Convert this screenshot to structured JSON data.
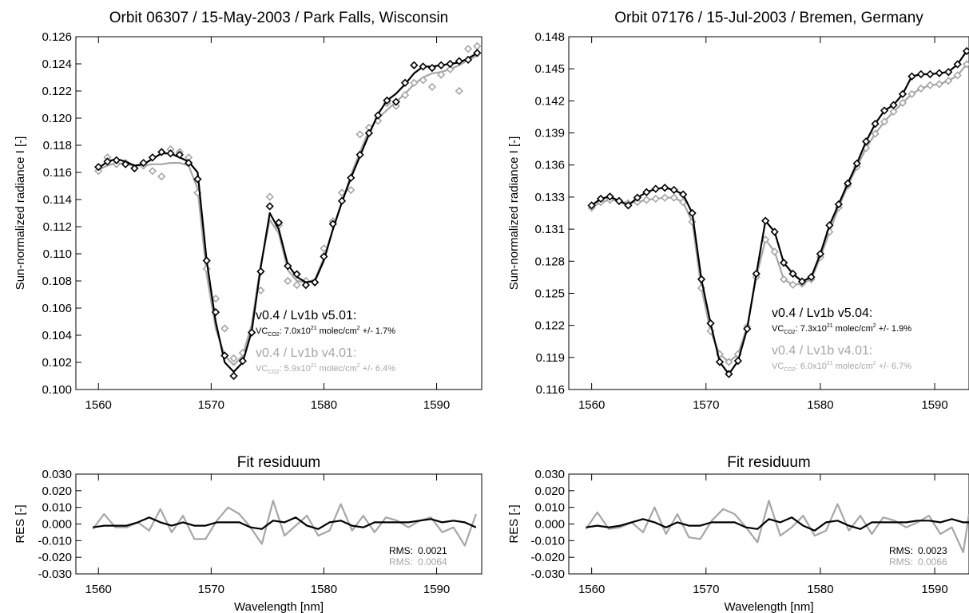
{
  "chart_data": [
    {
      "type": "line",
      "title": "Orbit 06307 / 15-May-2003 / Park Falls, Wisconsin",
      "xlabel": "",
      "ylabel": "Sun-normalized radiance I [-]",
      "xlim": [
        1558,
        1594
      ],
      "ylim": [
        0.1,
        0.126
      ],
      "x_ticks": [
        "1560",
        "1570",
        "1580",
        "1590"
      ],
      "y_ticks": [
        "0.100",
        "0.102",
        "0.104",
        "0.106",
        "0.108",
        "0.110",
        "0.112",
        "0.114",
        "0.116",
        "0.118",
        "0.120",
        "0.122",
        "0.124",
        "0.126"
      ],
      "grid": false,
      "annotations": [
        {
          "title": "v0.4 / Lv1b v5.01:",
          "vc_prefix": "VC",
          "vc_sub": "CO2",
          "vc_text": ": 7.0x10",
          "vc_exp": "21",
          "vc_unit": " molec/cm",
          "vc_unit_exp": "2",
          "vc_err": " +/- 1.7%",
          "color": "#000000"
        },
        {
          "title": "v0.4 / Lv1b v4.01:",
          "vc_prefix": "VC",
          "vc_sub": "CO2",
          "vc_text": ": 5.9x10",
          "vc_exp": "21",
          "vc_unit": " molec/cm",
          "vc_unit_exp": "2",
          "vc_err": " +/- 6.4%",
          "color": "#a6a6a6"
        }
      ],
      "x": [
        1560.0,
        1560.8,
        1561.6,
        1562.4,
        1563.2,
        1564.0,
        1564.8,
        1565.6,
        1566.4,
        1567.2,
        1568.0,
        1568.8,
        1569.6,
        1570.4,
        1571.2,
        1572.0,
        1572.8,
        1573.6,
        1574.4,
        1575.2,
        1576.0,
        1576.8,
        1577.6,
        1578.4,
        1579.2,
        1580.0,
        1580.8,
        1581.6,
        1582.4,
        1583.2,
        1584.0,
        1584.8,
        1585.6,
        1586.4,
        1587.2,
        1588.0,
        1588.8,
        1589.6,
        1590.4,
        1591.2,
        1592.0,
        1592.8,
        1593.6
      ],
      "series": [
        {
          "color": "#000000",
          "fit": [
            0.1163,
            0.1168,
            0.117,
            0.1168,
            0.1165,
            0.1166,
            0.117,
            0.1174,
            0.1174,
            0.1171,
            0.1168,
            0.116,
            0.1095,
            0.105,
            0.102,
            0.1013,
            0.102,
            0.1043,
            0.109,
            0.113,
            0.1118,
            0.1092,
            0.1083,
            0.1079,
            0.108,
            0.1095,
            0.1118,
            0.1138,
            0.1156,
            0.1172,
            0.1188,
            0.1203,
            0.1213,
            0.1218,
            0.1225,
            0.1233,
            0.1238,
            0.1238,
            0.1239,
            0.124,
            0.1241,
            0.1244,
            0.1248
          ],
          "obs": [
            0.1164,
            0.1168,
            0.1169,
            0.1166,
            0.1163,
            0.1167,
            0.1171,
            0.1175,
            0.1174,
            0.1173,
            0.1167,
            0.1155,
            0.1095,
            0.1057,
            0.1025,
            0.101,
            0.1021,
            0.1042,
            0.1087,
            0.1135,
            0.1123,
            0.1091,
            0.1085,
            0.1077,
            0.1079,
            0.1098,
            0.1122,
            0.1139,
            0.1156,
            0.1173,
            0.1189,
            0.1202,
            0.1213,
            0.1212,
            0.1226,
            0.1239,
            0.1238,
            0.1237,
            0.1239,
            0.124,
            0.1242,
            0.1243,
            0.1248
          ]
        },
        {
          "color": "#a6a6a6",
          "fit": [
            0.1162,
            0.1165,
            0.1167,
            0.1166,
            0.1165,
            0.1165,
            0.1166,
            0.1166,
            0.1167,
            0.1167,
            0.1165,
            0.1148,
            0.1085,
            0.1045,
            0.1025,
            0.1018,
            0.1025,
            0.1048,
            0.1092,
            0.1125,
            0.1115,
            0.1088,
            0.108,
            0.1079,
            0.1081,
            0.1097,
            0.1118,
            0.1138,
            0.1158,
            0.1175,
            0.1191,
            0.12,
            0.1206,
            0.1212,
            0.1218,
            0.1225,
            0.123,
            0.1233,
            0.1234,
            0.1236,
            0.1239,
            0.1243,
            0.1246
          ],
          "obs": [
            0.1161,
            0.1171,
            0.1166,
            0.1167,
            0.1163,
            0.1165,
            0.1161,
            0.1157,
            0.1177,
            0.1175,
            0.1171,
            0.1145,
            0.1089,
            0.1067,
            0.1045,
            0.1023,
            0.1027,
            0.1042,
            0.1073,
            0.1142,
            0.1121,
            0.108,
            0.1077,
            0.108,
            0.1079,
            0.1104,
            0.1124,
            0.1145,
            0.1147,
            0.1188,
            0.1193,
            0.1198,
            0.1211,
            0.1209,
            0.1217,
            0.1226,
            0.1228,
            0.1223,
            0.1232,
            0.1236,
            0.122,
            0.1251,
            0.1253
          ]
        }
      ]
    },
    {
      "type": "line",
      "title": "Orbit 07176 / 15-Jul-2003 / Bremen, Germany",
      "xlabel": "",
      "ylabel": "Sun-normalized radiance I [-]",
      "xlim": [
        1558,
        1593
      ],
      "ylim": [
        0.116,
        0.148
      ],
      "x_ticks": [
        "1560",
        "1570",
        "1580",
        "1590"
      ],
      "y_ticks": [
        "0.116",
        "0.119",
        "0.122",
        "0.125",
        "0.128",
        "0.131",
        "0.133",
        "0.136",
        "0.139",
        "0.142",
        "0.145",
        "0.148"
      ],
      "grid": false,
      "annotations": [
        {
          "title": "v0.4 / Lv1b v5.04:",
          "vc_prefix": "VC",
          "vc_sub": "CO2",
          "vc_text": ": 7.3x10",
          "vc_exp": "21",
          "vc_unit": " molec/cm",
          "vc_unit_exp": "2",
          "vc_err": " +/- 1.9%",
          "color": "#000000"
        },
        {
          "title": "v0.4 / Lv1b v4.01:",
          "vc_prefix": "VC",
          "vc_sub": "CO2",
          "vc_text": ": 6.0x10",
          "vc_exp": "21",
          "vc_unit": " molec/cm",
          "vc_unit_exp": "2",
          "vc_err": " +/- 6.7%",
          "color": "#a6a6a6"
        }
      ],
      "x": [
        1560.0,
        1560.8,
        1561.6,
        1562.4,
        1563.2,
        1564.0,
        1564.8,
        1565.6,
        1566.4,
        1567.2,
        1568.0,
        1568.8,
        1569.6,
        1570.4,
        1571.2,
        1572.0,
        1572.8,
        1573.6,
        1574.4,
        1575.2,
        1576.0,
        1576.8,
        1577.6,
        1578.4,
        1579.2,
        1580.0,
        1580.8,
        1581.6,
        1582.4,
        1583.2,
        1584.0,
        1584.8,
        1585.6,
        1586.4,
        1587.2,
        1588.0,
        1588.8,
        1589.6,
        1590.4,
        1591.2,
        1592.0,
        1592.8
      ],
      "series": [
        {
          "color": "#000000",
          "fit": [
            0.1327,
            0.1333,
            0.1335,
            0.1331,
            0.1327,
            0.1334,
            0.1339,
            0.1342,
            0.1343,
            0.1341,
            0.1337,
            0.132,
            0.126,
            0.122,
            0.1185,
            0.1174,
            0.1186,
            0.1215,
            0.1265,
            0.1313,
            0.1303,
            0.1275,
            0.1265,
            0.1258,
            0.1262,
            0.1283,
            0.1309,
            0.1328,
            0.1347,
            0.1365,
            0.1385,
            0.1401,
            0.1413,
            0.1418,
            0.1428,
            0.1444,
            0.1446,
            0.1446,
            0.1447,
            0.1448,
            0.1455,
            0.1467
          ]
        },
        {
          "color": "#a6a6a6",
          "fit": [
            0.1325,
            0.133,
            0.1332,
            0.1331,
            0.1329,
            0.133,
            0.1332,
            0.1333,
            0.1334,
            0.1334,
            0.133,
            0.1312,
            0.1252,
            0.1213,
            0.1192,
            0.1185,
            0.1192,
            0.1217,
            0.1262,
            0.1296,
            0.1285,
            0.126,
            0.1255,
            0.1256,
            0.126,
            0.128,
            0.1303,
            0.1325,
            0.1345,
            0.1362,
            0.1379,
            0.1392,
            0.1403,
            0.1412,
            0.142,
            0.1428,
            0.1433,
            0.1436,
            0.1437,
            0.144,
            0.1445,
            0.1455
          ]
        }
      ]
    },
    {
      "type": "line",
      "title": "Fit residuum",
      "xlabel": "Wavelength [nm]",
      "ylabel": "RES [-]",
      "xlim": [
        1558,
        1594
      ],
      "ylim": [
        -0.03,
        0.03
      ],
      "x_ticks": [
        "1560",
        "1570",
        "1580",
        "1590"
      ],
      "y_ticks": [
        "-0.030",
        "-0.020",
        "-0.010",
        "0.000",
        "0.010",
        "0.020",
        "0.030"
      ],
      "grid": false,
      "rms_label": "RMS:",
      "rms_values": [
        "0.0021",
        "0.0064"
      ],
      "x": [
        1559.5,
        1560.5,
        1561.5,
        1562.5,
        1563.5,
        1564.5,
        1565.5,
        1566.5,
        1567.5,
        1568.5,
        1569.5,
        1570.5,
        1571.5,
        1572.5,
        1573.5,
        1574.5,
        1575.5,
        1576.5,
        1577.5,
        1578.5,
        1579.5,
        1580.5,
        1581.5,
        1582.5,
        1583.5,
        1584.5,
        1585.5,
        1586.5,
        1587.5,
        1588.5,
        1589.5,
        1590.5,
        1591.5,
        1592.5,
        1593.5
      ],
      "series": [
        {
          "color": "#000000",
          "values": [
            -0.002,
            -0.001,
            -0.001,
            -0.001,
            0.001,
            0.004,
            0.001,
            -0.001,
            0.001,
            -0.001,
            -0.001,
            0.001,
            0.001,
            0.001,
            -0.002,
            -0.003,
            0.002,
            0.001,
            0.004,
            -0.001,
            -0.003,
            0.001,
            0.002,
            -0.001,
            -0.002,
            0.001,
            0.001,
            0.001,
            0.001,
            0.002,
            0.003,
            0.001,
            0.002,
            0.001,
            -0.002
          ]
        },
        {
          "color": "#a6a6a6",
          "values": [
            -0.003,
            0.006,
            -0.002,
            -0.002,
            0.001,
            -0.004,
            0.009,
            -0.005,
            0.005,
            -0.009,
            -0.009,
            0.002,
            0.01,
            0.006,
            -0.002,
            -0.012,
            0.014,
            -0.007,
            -0.001,
            0.005,
            -0.007,
            -0.004,
            0.012,
            -0.004,
            0.005,
            -0.005,
            0.004,
            0.002,
            -0.002,
            0.002,
            0.004,
            -0.005,
            -0.002,
            -0.013,
            0.006
          ]
        }
      ]
    },
    {
      "type": "line",
      "title": "Fit residuum",
      "xlabel": "Wavelength [nm]",
      "ylabel": "RES [-]",
      "xlim": [
        1558,
        1593
      ],
      "ylim": [
        -0.03,
        0.03
      ],
      "x_ticks": [
        "1560",
        "1570",
        "1580",
        "1590"
      ],
      "y_ticks": [
        "-0.030",
        "-0.020",
        "-0.010",
        "0.000",
        "0.010",
        "0.020",
        "0.030"
      ],
      "grid": false,
      "rms_label": "RMS:",
      "rms_values": [
        "0.0023",
        "0.0066"
      ],
      "x": [
        1559.5,
        1560.5,
        1561.5,
        1562.5,
        1563.5,
        1564.5,
        1565.5,
        1566.5,
        1567.5,
        1568.5,
        1569.5,
        1570.5,
        1571.5,
        1572.5,
        1573.5,
        1574.5,
        1575.5,
        1576.5,
        1577.5,
        1578.5,
        1579.5,
        1580.5,
        1581.5,
        1582.5,
        1583.5,
        1584.5,
        1585.5,
        1586.5,
        1587.5,
        1588.5,
        1589.5,
        1590.5,
        1591.5,
        1592.5,
        1593.0
      ],
      "series": [
        {
          "color": "#000000",
          "values": [
            -0.002,
            -0.001,
            -0.002,
            -0.001,
            0.001,
            0.003,
            0.001,
            -0.002,
            0.001,
            -0.001,
            -0.001,
            0.001,
            0.001,
            0.001,
            -0.002,
            -0.003,
            0.003,
            0.001,
            0.004,
            -0.001,
            -0.004,
            0.001,
            0.002,
            -0.001,
            -0.003,
            0.001,
            0.001,
            0.001,
            0.001,
            0.002,
            0.002,
            0.001,
            0.003,
            0.001,
            0.001
          ]
        },
        {
          "color": "#a6a6a6",
          "values": [
            -0.003,
            0.007,
            -0.003,
            -0.002,
            0.001,
            -0.005,
            0.01,
            -0.006,
            0.006,
            -0.008,
            -0.009,
            0.002,
            0.009,
            0.006,
            -0.002,
            -0.011,
            0.014,
            -0.007,
            -0.002,
            0.005,
            -0.007,
            -0.004,
            0.012,
            -0.004,
            0.005,
            -0.006,
            0.004,
            0.002,
            -0.002,
            0.001,
            0.005,
            -0.006,
            -0.002,
            -0.017,
            0.006
          ]
        }
      ]
    }
  ]
}
